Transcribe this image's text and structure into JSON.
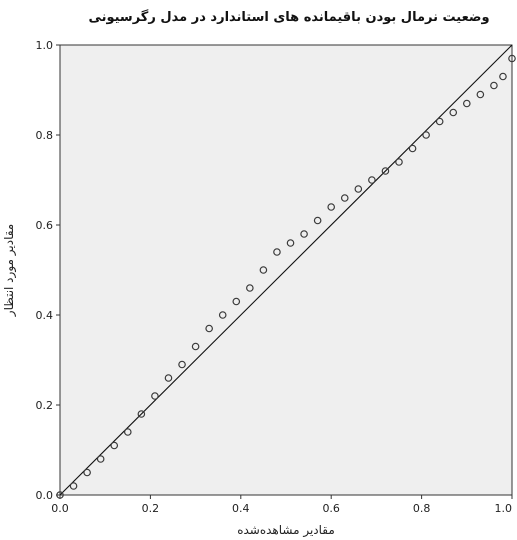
{
  "chart_data": {
    "type": "scatter",
    "title": "وضعیت نرمال بودن باقیمانده های استاندارد در مدل رگرسیونی",
    "xlabel": "مقادیر مشاهده‌شده",
    "ylabel": "مقادیر مورد انتظار",
    "xlim": [
      0,
      1
    ],
    "ylim": [
      0,
      1
    ],
    "x_ticks": [
      "0.0",
      "0.2",
      "0.4",
      "0.6",
      "0.8",
      "1.0"
    ],
    "y_ticks": [
      "0.0",
      "0.2",
      "0.4",
      "0.6",
      "0.8",
      "1.0"
    ],
    "plot_background": "#efefef",
    "marker_color": "#3a3a3a",
    "grid": false,
    "legend": "none",
    "series": [
      {
        "marker": "circle",
        "x": [
          0.0,
          0.03,
          0.06,
          0.09,
          0.12,
          0.15,
          0.18,
          0.21,
          0.24,
          0.27,
          0.3,
          0.33,
          0.36,
          0.39,
          0.42,
          0.45,
          0.48,
          0.51,
          0.54,
          0.57,
          0.6,
          0.63,
          0.66,
          0.69,
          0.72,
          0.75,
          0.78,
          0.81,
          0.84,
          0.87,
          0.9,
          0.93,
          0.96,
          0.98,
          1.0
        ],
        "y": [
          0.0,
          0.02,
          0.05,
          0.08,
          0.11,
          0.14,
          0.18,
          0.22,
          0.26,
          0.29,
          0.33,
          0.37,
          0.4,
          0.43,
          0.46,
          0.5,
          0.54,
          0.56,
          0.58,
          0.61,
          0.64,
          0.66,
          0.68,
          0.7,
          0.72,
          0.74,
          0.77,
          0.8,
          0.83,
          0.85,
          0.87,
          0.89,
          0.91,
          0.93,
          0.97
        ]
      }
    ],
    "reference_line": {
      "from": [
        0,
        0
      ],
      "to": [
        1,
        1
      ]
    }
  }
}
